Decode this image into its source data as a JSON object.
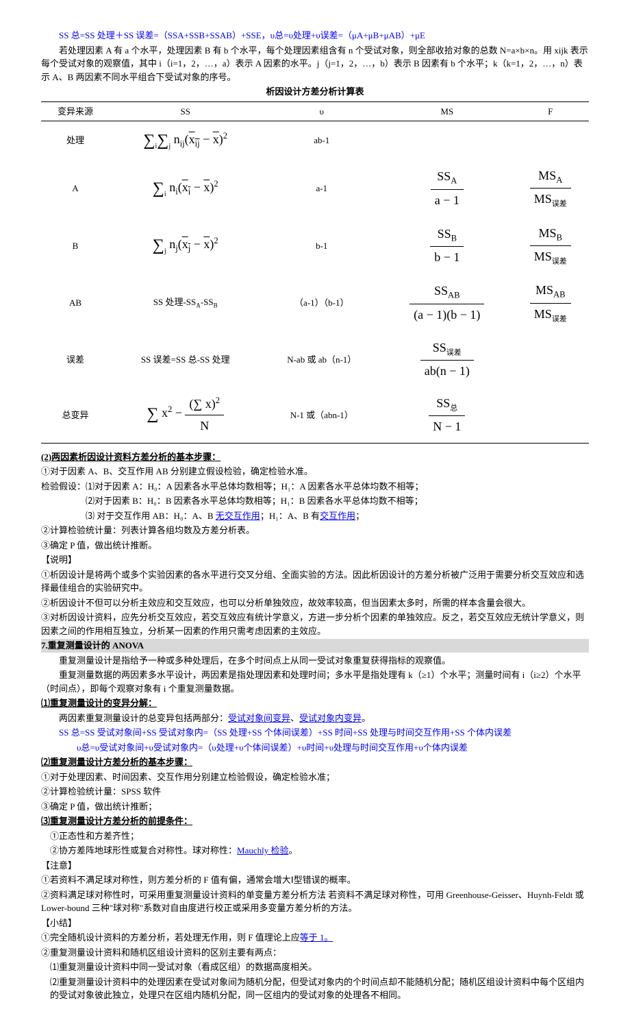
{
  "eq_top": "SS 总=SS 处理＋SS 误差=（SSA+SSB+SSAB）+SSE，υ总=υ处理+υ误差=（μA+μB+μAB）+μE",
  "intro1": "若处理因素 A 有 a 个水平，处理因素 B 有 b 个水平，每个处理因素组含有 n 个受试对象，则全部收拾对象的总数 N=a×b×n。用 xijk 表示每个受试对象的观察值，其中 i（i=1，2，…，a）表示 A 因素的水平。j（j=1，2，…，b）表示 B 因素有 b 个水平；k（k=1，2，…，n）表示 A、B 两因素不同水平组合下受试对象的序号。",
  "table_title": "析因设计方差分析计算表",
  "headers": {
    "src": "变异来源",
    "ss": "SS",
    "df": "υ",
    "ms": "MS",
    "f": "F"
  },
  "rows": {
    "treat": {
      "src": "处理",
      "df": "ab-1"
    },
    "A": {
      "src": "A",
      "df": "a-1"
    },
    "B": {
      "src": "B",
      "df": "b-1"
    },
    "AB": {
      "src": "AB",
      "ss": "SS 处理-SS<sub>A</sub>-SS<sub>B</sub>",
      "df": "（a-1）（b-1）"
    },
    "err": {
      "src": "误差",
      "ss": "SS 误差=SS 总-SS 处理",
      "df": "N-ab 或 ab（n-1）"
    },
    "tot": {
      "src": "总变异",
      "df": "N-1 或（abn-1）"
    }
  },
  "sec2_title": "(2)两因素析因设计资料方差分析的基本步骤：",
  "sec2_l1": "①对于因素 A、B、交互作用 AB 分别建立假设检验，确定检验水准。",
  "sec2_l2": "检验假设：⑴对于因素 A：H₀：A 因素各水平总体均数相等；H₁：A 因素各水平总体均数不相等；",
  "sec2_l3": "⑵对于因素 B：H₀：B 因素各水平总体均数相等；H₁：B 因素各水平总体均数不相等；",
  "sec2_l4a": "⑶ 对于交互作用 AB：H₀：A、B ",
  "sec2_l4link1": "无交互作用",
  "sec2_l4b": "；H₁：A、B 有",
  "sec2_l4link2": "交互作用",
  "sec2_l4c": "；",
  "sec2_l5": "②计算检验统计量：列表计算各组均数及方差分析表。",
  "sec2_l6": "③确定 P 值，做出统计推断。",
  "note1_t": "【说明】",
  "note1_1": "①析因设计是将两个或多个实验因素的各水平进行交叉分组、全面实验的方法。因此析因设计的方差分析被广泛用于需要分析交互效应和选择最佳组合的实验研究中。",
  "note1_2": "②析因设计不但可以分析主效应和交互效应，也可以分析单独效应，故效率较高，但当因素太多时，所需的样本含量会很大。",
  "note1_3": "③对析因设计资料，应先分析交互效应，若交互效应有统计学意义，方进一步分析个因素的单独效应。反之，若交互效应无统计学意义，则因素之间的作用相互独立，分析某一因素的作用只需考虑因素的主效应。",
  "sec7_title": "7.重复测量设计的 ANOVA",
  "sec7_p1": "重复测量设计是指给予一种或多种处理后，在多个时间点上从同一受试对象重复获得指标的观察值。",
  "sec7_p2": "重复测量数据的两因素多水平设计，两因素是指处理因素和处理时间；多水平是指处理有 k（≥1）个水平；测量时间有 i（i≥2）个水平（时间点），即每个观察对象有 i 个重复测量数据。",
  "sec7_1_title": "⑴重复测量设计的变异分解：",
  "sec7_1_a": "两因素重复测量设计的总变异包括两部分：",
  "sec7_1_link1": "受试对象间变异",
  "sec7_1_mid": "、",
  "sec7_1_link2": "受试对象内变异",
  "sec7_1_end": "。",
  "sec7_1_eq1": "SS 总=SS 受试对象间+SS 受试对象内=（SS 处理+SS 个体间误差）+SS 时间+SS 处理与时间交互作用+SS 个体内误差",
  "sec7_1_eq2": "υ总=υ受试对象间+υ受试对象内=（υ处理+υ个体间误差）+υ时间+υ处理与时间交互作用+υ个体内误差",
  "sec7_2_title": "⑵重复测量设计方差分析的基本步骤：",
  "sec7_2_1": "①对于处理因素、时间因素、交互作用分别建立检验假设，确定检验水准；",
  "sec7_2_2": "②计算检验统计量：SPSS 软件",
  "sec7_2_3": "③确定 P 值，做出统计推断；",
  "sec7_3_title": "⑶重复测量设计方差分析的前提条件：",
  "sec7_3_1": "①正态性和方差齐性；",
  "sec7_3_2a": "②协方差阵地球形性或复合对称性。球对称性：",
  "sec7_3_2link": "Mauchly 检验",
  "sec7_3_2b": "。",
  "note2_t": "【注意】",
  "note2_1": "①若资料不满足球对称性，则方差分析的 F 值有偏，通常会增大Ⅰ型错误的概率。",
  "note2_2": "②资料满足球对称性时，可采用重复测量设计资料的单变量方差分析方法 若资料不满足球对称性，可用 Greenhouse-Geisser、Huynh-Feldt 或 Lower-bound 三种\"球对称\"系数对自由度进行校正或采用多变量方差分析的方法。",
  "note3_t": "【小结】",
  "note3_1a": "①完全随机设计资料的方差分析，若处理无作用，则 F 值理论上应",
  "note3_1link": "等于 1。",
  "note3_2": "②重复测量设计资料和随机区组设计资料的区别主要有两点：",
  "note3_2_1": "⑴重复测量设计资料中同一受试对象（看成区组）的数据高度相关。",
  "note3_2_2": "⑵重复测量设计资料中的处理因素在受试对象间为随机分配，但受试对象内的个时间点却不能随机分配；随机区组设计资料中每个区组内的受试对象彼此独立，处理只在区组内随机分配，同一区组内的受试对象的处理各不相同。"
}
